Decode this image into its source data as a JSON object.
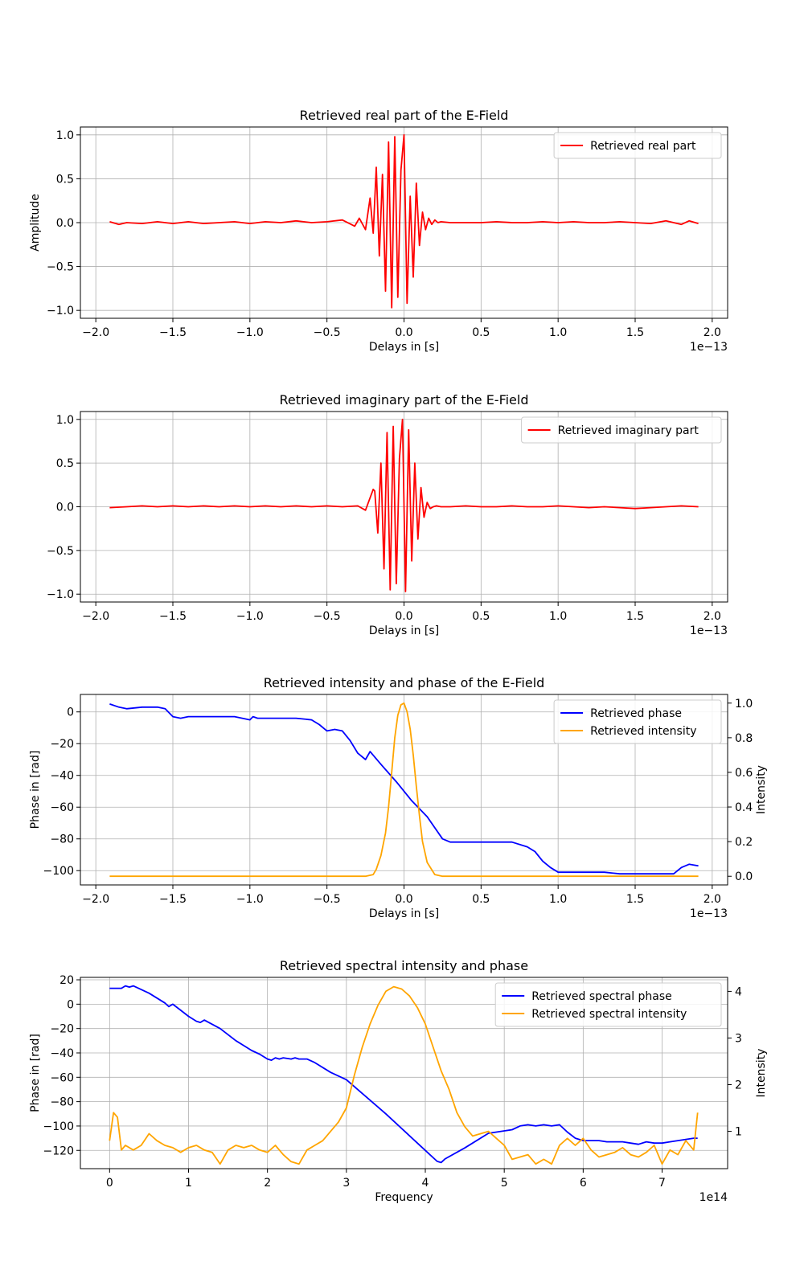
{
  "chart_data": [
    {
      "type": "line",
      "title": "Retrieved real part of the E-Field",
      "xlabel": "Delays in [s]",
      "ylabel": "Amplitude",
      "x_offset_label": "1e−13",
      "xlim": [
        -2.1,
        2.1
      ],
      "ylim": [
        -1.09,
        1.09
      ],
      "xticks": [
        -2.0,
        -1.5,
        -1.0,
        -0.5,
        0.0,
        0.5,
        1.0,
        1.5,
        2.0
      ],
      "xtick_labels": [
        "−2.0",
        "−1.5",
        "−1.0",
        "−0.5",
        "0.0",
        "0.5",
        "1.0",
        "1.5",
        "2.0"
      ],
      "yticks": [
        -1.0,
        -0.5,
        0.0,
        0.5,
        1.0
      ],
      "ytick_labels": [
        "−1.0",
        "−0.5",
        "0.0",
        "0.5",
        "1.0"
      ],
      "grid": true,
      "legend_position": "top-right",
      "series": [
        {
          "name": "Retrieved real part",
          "color": "#ff0000",
          "x": [
            -1.91,
            -1.85,
            -1.8,
            -1.7,
            -1.6,
            -1.5,
            -1.4,
            -1.3,
            -1.2,
            -1.1,
            -1.0,
            -0.9,
            -0.8,
            -0.7,
            -0.6,
            -0.5,
            -0.4,
            -0.32,
            -0.29,
            -0.25,
            -0.22,
            -0.2,
            -0.18,
            -0.16,
            -0.14,
            -0.12,
            -0.1,
            -0.08,
            -0.06,
            -0.04,
            -0.02,
            0.0,
            0.02,
            0.04,
            0.06,
            0.08,
            0.1,
            0.12,
            0.14,
            0.16,
            0.18,
            0.2,
            0.22,
            0.24,
            0.3,
            0.4,
            0.5,
            0.6,
            0.7,
            0.8,
            0.9,
            1.0,
            1.1,
            1.2,
            1.3,
            1.4,
            1.5,
            1.6,
            1.7,
            1.8,
            1.85,
            1.91
          ],
          "y": [
            0.01,
            -0.02,
            0.0,
            -0.01,
            0.01,
            -0.01,
            0.01,
            -0.01,
            0.0,
            0.01,
            -0.01,
            0.01,
            0.0,
            0.02,
            0.0,
            0.01,
            0.03,
            -0.04,
            0.05,
            -0.08,
            0.28,
            -0.12,
            0.63,
            -0.38,
            0.55,
            -0.78,
            0.92,
            -0.97,
            0.98,
            -0.85,
            0.6,
            1.0,
            -0.92,
            0.3,
            -0.62,
            0.45,
            -0.26,
            0.12,
            -0.08,
            0.05,
            -0.02,
            0.03,
            0.0,
            0.01,
            0.0,
            0.0,
            0.0,
            0.01,
            0.0,
            0.0,
            0.01,
            0.0,
            0.01,
            0.0,
            0.0,
            0.01,
            0.0,
            -0.01,
            0.02,
            -0.02,
            0.02,
            -0.01
          ]
        }
      ]
    },
    {
      "type": "line",
      "title": "Retrieved imaginary part of the E-Field",
      "xlabel": "Delays in [s]",
      "ylabel": "",
      "x_offset_label": "1e−13",
      "xlim": [
        -2.1,
        2.1
      ],
      "ylim": [
        -1.09,
        1.09
      ],
      "xticks": [
        -2.0,
        -1.5,
        -1.0,
        -0.5,
        0.0,
        0.5,
        1.0,
        1.5,
        2.0
      ],
      "xtick_labels": [
        "−2.0",
        "−1.5",
        "−1.0",
        "−0.5",
        "0.0",
        "0.5",
        "1.0",
        "1.5",
        "2.0"
      ],
      "yticks": [
        -1.0,
        -0.5,
        0.0,
        0.5,
        1.0
      ],
      "ytick_labels": [
        "−1.0",
        "−0.5",
        "0.0",
        "0.5",
        "1.0"
      ],
      "grid": true,
      "legend_position": "top-right",
      "series": [
        {
          "name": "Retrieved imaginary part",
          "color": "#ff0000",
          "x": [
            -1.91,
            -1.8,
            -1.7,
            -1.6,
            -1.5,
            -1.4,
            -1.3,
            -1.2,
            -1.1,
            -1.0,
            -0.9,
            -0.8,
            -0.7,
            -0.6,
            -0.5,
            -0.4,
            -0.3,
            -0.25,
            -0.2,
            -0.19,
            -0.17,
            -0.15,
            -0.13,
            -0.11,
            -0.09,
            -0.07,
            -0.05,
            -0.03,
            -0.01,
            0.01,
            0.03,
            0.05,
            0.07,
            0.09,
            0.11,
            0.13,
            0.15,
            0.17,
            0.19,
            0.21,
            0.24,
            0.3,
            0.4,
            0.5,
            0.6,
            0.7,
            0.8,
            0.9,
            1.0,
            1.1,
            1.2,
            1.3,
            1.4,
            1.5,
            1.6,
            1.7,
            1.8,
            1.91
          ],
          "y": [
            -0.01,
            0.0,
            0.01,
            0.0,
            0.01,
            0.0,
            0.01,
            0.0,
            0.01,
            0.0,
            0.01,
            0.0,
            0.01,
            0.0,
            0.01,
            0.0,
            0.01,
            -0.04,
            0.2,
            0.18,
            -0.3,
            0.5,
            -0.71,
            0.85,
            -0.95,
            0.92,
            -0.88,
            0.55,
            1.0,
            -0.97,
            0.88,
            -0.62,
            0.5,
            -0.37,
            0.22,
            -0.12,
            0.05,
            -0.02,
            0.0,
            0.01,
            0.0,
            0.0,
            0.01,
            0.0,
            0.0,
            0.01,
            0.0,
            0.0,
            0.01,
            0.0,
            -0.01,
            0.0,
            -0.01,
            -0.02,
            -0.01,
            0.0,
            0.01,
            0.0
          ]
        }
      ]
    },
    {
      "type": "line",
      "title": "Retrieved intensity and phase of the E-Field",
      "xlabel": "Delays in [s]",
      "ylabel": "Phase in [rad]",
      "y2label": "Intensity",
      "x_offset_label": "1e−13",
      "xlim": [
        -2.1,
        2.1
      ],
      "ylim": [
        -109,
        11
      ],
      "y2lim": [
        -0.05,
        1.05
      ],
      "xticks": [
        -2.0,
        -1.5,
        -1.0,
        -0.5,
        0.0,
        0.5,
        1.0,
        1.5,
        2.0
      ],
      "xtick_labels": [
        "−2.0",
        "−1.5",
        "−1.0",
        "−0.5",
        "0.0",
        "0.5",
        "1.0",
        "1.5",
        "2.0"
      ],
      "yticks": [
        -100,
        -80,
        -60,
        -40,
        -20,
        0
      ],
      "ytick_labels": [
        "−100",
        "−80",
        "−60",
        "−40",
        "−20",
        "0"
      ],
      "y2ticks": [
        0.0,
        0.2,
        0.4,
        0.6,
        0.8,
        1.0
      ],
      "y2tick_labels": [
        "0.0",
        "0.2",
        "0.4",
        "0.6",
        "0.8",
        "1.0"
      ],
      "grid": true,
      "legend_position": "top-right",
      "series": [
        {
          "name": "Retrieved phase",
          "color": "#0000ff",
          "axis": "left",
          "x": [
            -1.91,
            -1.85,
            -1.8,
            -1.7,
            -1.6,
            -1.55,
            -1.5,
            -1.45,
            -1.4,
            -1.3,
            -1.2,
            -1.1,
            -1.0,
            -0.98,
            -0.95,
            -0.9,
            -0.8,
            -0.7,
            -0.6,
            -0.55,
            -0.5,
            -0.45,
            -0.4,
            -0.35,
            -0.3,
            -0.25,
            -0.22,
            -0.15,
            -0.05,
            0.05,
            0.15,
            0.2,
            0.25,
            0.3,
            0.4,
            0.5,
            0.6,
            0.7,
            0.8,
            0.85,
            0.9,
            0.95,
            1.0,
            1.05,
            1.1,
            1.2,
            1.3,
            1.4,
            1.5,
            1.6,
            1.7,
            1.75,
            1.8,
            1.85,
            1.91
          ],
          "y": [
            5,
            3,
            2,
            3,
            3,
            2,
            -3,
            -4,
            -3,
            -3,
            -3,
            -3,
            -5,
            -3,
            -4,
            -4,
            -4,
            -4,
            -5,
            -8,
            -12,
            -11,
            -12,
            -18,
            -26,
            -30,
            -25,
            -33,
            -44,
            -56,
            -66,
            -73,
            -80,
            -82,
            -82,
            -82,
            -82,
            -82,
            -85,
            -88,
            -94,
            -98,
            -101,
            -101,
            -101,
            -101,
            -101,
            -102,
            -102,
            -102,
            -102,
            -102,
            -98,
            -96,
            -97
          ]
        },
        {
          "name": "Retrieved intensity",
          "color": "#ffa500",
          "axis": "right",
          "x": [
            -1.91,
            -1.0,
            -0.5,
            -0.25,
            -0.2,
            -0.18,
            -0.15,
            -0.12,
            -0.1,
            -0.08,
            -0.06,
            -0.04,
            -0.02,
            0.0,
            0.02,
            0.04,
            0.06,
            0.08,
            0.1,
            0.12,
            0.15,
            0.2,
            0.25,
            0.5,
            1.0,
            1.5,
            1.91
          ],
          "y": [
            0.0,
            0.0,
            0.0,
            0.0,
            0.01,
            0.04,
            0.12,
            0.25,
            0.4,
            0.6,
            0.8,
            0.93,
            0.99,
            1.0,
            0.95,
            0.85,
            0.7,
            0.52,
            0.35,
            0.2,
            0.08,
            0.01,
            0.0,
            0.0,
            0.0,
            0.0,
            0.0
          ]
        }
      ]
    },
    {
      "type": "line",
      "title": "Retrieved spectral intensity and phase",
      "xlabel": "Frequency",
      "ylabel": "Phase in [rad]",
      "y2label": "Intensity",
      "x_offset_label": "1e14",
      "xlim": [
        -0.37,
        7.83
      ],
      "ylim": [
        -135,
        22
      ],
      "y2lim": [
        0.2,
        4.3
      ],
      "xticks": [
        0,
        1,
        2,
        3,
        4,
        5,
        6,
        7
      ],
      "xtick_labels": [
        "0",
        "1",
        "2",
        "3",
        "4",
        "5",
        "6",
        "7"
      ],
      "yticks": [
        -120,
        -100,
        -80,
        -60,
        -40,
        -20,
        0,
        20
      ],
      "ytick_labels": [
        "−120",
        "−100",
        "−80",
        "−60",
        "−40",
        "−20",
        "0",
        "20"
      ],
      "y2ticks": [
        1,
        2,
        3,
        4
      ],
      "y2tick_labels": [
        "1",
        "2",
        "3",
        "4"
      ],
      "grid": true,
      "legend_position": "top-right",
      "series": [
        {
          "name": "Retrieved spectral phase",
          "color": "#0000ff",
          "axis": "left",
          "x": [
            0.0,
            0.1,
            0.15,
            0.2,
            0.25,
            0.3,
            0.5,
            0.7,
            0.75,
            0.8,
            0.9,
            1.0,
            1.1,
            1.15,
            1.2,
            1.4,
            1.6,
            1.7,
            1.8,
            1.9,
            2.0,
            2.05,
            2.1,
            2.15,
            2.2,
            2.3,
            2.35,
            2.4,
            2.5,
            2.6,
            2.8,
            3.0,
            3.5,
            4.0,
            4.15,
            4.2,
            4.25,
            4.5,
            4.8,
            5.0,
            5.1,
            5.2,
            5.3,
            5.4,
            5.5,
            5.6,
            5.7,
            5.8,
            5.9,
            6.0,
            6.1,
            6.2,
            6.3,
            6.4,
            6.5,
            6.6,
            6.7,
            6.8,
            6.9,
            7.0,
            7.1,
            7.2,
            7.3,
            7.4,
            7.45
          ],
          "y": [
            13,
            13,
            13,
            15,
            14,
            15,
            9,
            1,
            -2,
            0,
            -5,
            -10,
            -14,
            -15,
            -13,
            -20,
            -30,
            -34,
            -38,
            -41,
            -45,
            -46,
            -44,
            -45,
            -44,
            -45,
            -44,
            -45,
            -45,
            -48,
            -56,
            -62,
            -90,
            -120,
            -129,
            -130,
            -127,
            -118,
            -106,
            -104,
            -103,
            -100,
            -99,
            -100,
            -99,
            -100,
            -99,
            -105,
            -110,
            -112,
            -112,
            -112,
            -113,
            -113,
            -113,
            -114,
            -115,
            -113,
            -114,
            -114,
            -113,
            -112,
            -111,
            -110,
            -110
          ]
        },
        {
          "name": "Retrieved spectral intensity",
          "color": "#ffa500",
          "axis": "right",
          "x": [
            0.0,
            0.05,
            0.1,
            0.15,
            0.2,
            0.3,
            0.4,
            0.5,
            0.6,
            0.7,
            0.8,
            0.9,
            1.0,
            1.1,
            1.2,
            1.3,
            1.4,
            1.5,
            1.6,
            1.7,
            1.8,
            1.9,
            2.0,
            2.1,
            2.2,
            2.3,
            2.4,
            2.5,
            2.6,
            2.7,
            2.8,
            2.9,
            3.0,
            3.1,
            3.2,
            3.3,
            3.4,
            3.5,
            3.6,
            3.7,
            3.8,
            3.9,
            4.0,
            4.1,
            4.2,
            4.3,
            4.4,
            4.5,
            4.6,
            4.7,
            4.8,
            4.9,
            5.0,
            5.1,
            5.2,
            5.3,
            5.4,
            5.5,
            5.6,
            5.7,
            5.8,
            5.9,
            6.0,
            6.1,
            6.2,
            6.3,
            6.4,
            6.5,
            6.6,
            6.7,
            6.8,
            6.9,
            7.0,
            7.1,
            7.2,
            7.3,
            7.4,
            7.45
          ],
          "y": [
            0.8,
            1.4,
            1.3,
            0.6,
            0.7,
            0.6,
            0.7,
            0.95,
            0.8,
            0.7,
            0.65,
            0.55,
            0.65,
            0.7,
            0.6,
            0.55,
            0.3,
            0.6,
            0.7,
            0.65,
            0.7,
            0.6,
            0.55,
            0.7,
            0.5,
            0.35,
            0.3,
            0.6,
            0.7,
            0.8,
            1.0,
            1.2,
            1.5,
            2.2,
            2.8,
            3.3,
            3.7,
            4.0,
            4.1,
            4.05,
            3.9,
            3.65,
            3.3,
            2.8,
            2.3,
            1.9,
            1.4,
            1.1,
            0.9,
            0.95,
            1.0,
            0.85,
            0.7,
            0.4,
            0.45,
            0.5,
            0.3,
            0.4,
            0.3,
            0.7,
            0.85,
            0.7,
            0.85,
            0.6,
            0.45,
            0.5,
            0.55,
            0.65,
            0.5,
            0.45,
            0.55,
            0.7,
            0.3,
            0.6,
            0.5,
            0.8,
            0.6,
            1.4
          ]
        }
      ]
    }
  ]
}
